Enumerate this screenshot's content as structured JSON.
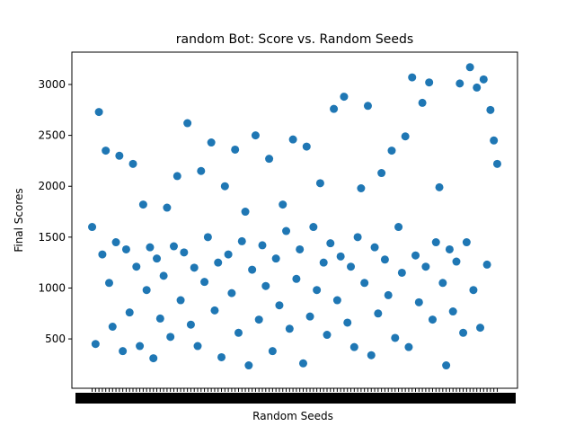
{
  "chart_data": {
    "type": "scatter",
    "title": "random Bot: Score vs. Random Seeds",
    "x_label": "Random Seeds",
    "y_label": "Final Scores",
    "color": "#1f77b4",
    "x": [
      0,
      1,
      2,
      3,
      4,
      5,
      6,
      7,
      8,
      9,
      10,
      11,
      12,
      13,
      14,
      15,
      16,
      17,
      18,
      19,
      20,
      21,
      22,
      23,
      24,
      25,
      26,
      27,
      28,
      29,
      30,
      31,
      32,
      33,
      34,
      35,
      36,
      37,
      38,
      39,
      40,
      41,
      42,
      43,
      44,
      45,
      46,
      47,
      48,
      49,
      50,
      51,
      52,
      53,
      54,
      55,
      56,
      57,
      58,
      59,
      60,
      61,
      62,
      63,
      64,
      65,
      66,
      67,
      68,
      69,
      70,
      71,
      72,
      73,
      74,
      75,
      76,
      77,
      78,
      79,
      80,
      81,
      82,
      83,
      84,
      85,
      86,
      87,
      88,
      89,
      90,
      91,
      92,
      93,
      94,
      95,
      96,
      97,
      98,
      99,
      100,
      101,
      102,
      103,
      104,
      105,
      106,
      107,
      108,
      109,
      110,
      111,
      112,
      113,
      114,
      115,
      116,
      117,
      118,
      119
    ],
    "values": [
      1600,
      450,
      2730,
      1330,
      2350,
      1050,
      620,
      1450,
      2300,
      380,
      1380,
      760,
      2220,
      1210,
      430,
      1820,
      980,
      1400,
      310,
      1290,
      700,
      1120,
      1790,
      520,
      1410,
      2100,
      880,
      1350,
      2620,
      640,
      1200,
      430,
      2150,
      1060,
      1500,
      2430,
      780,
      1250,
      320,
      2000,
      1330,
      950,
      2360,
      560,
      1460,
      1750,
      240,
      1180,
      2500,
      690,
      1420,
      1020,
      2270,
      380,
      1290,
      830,
      1820,
      1560,
      600,
      2460,
      1090,
      1380,
      260,
      2390,
      720,
      1600,
      980,
      2030,
      1250,
      540,
      1440,
      2760,
      880,
      1310,
      2880,
      660,
      1210,
      420,
      1500,
      1980,
      1050,
      2790,
      340,
      1400,
      750,
      2130,
      1280,
      930,
      2350,
      510,
      1600,
      1150,
      2490,
      420,
      3070,
      1320,
      860,
      2820,
      1210,
      3020,
      690,
      1450,
      1990,
      1050,
      240,
      1380,
      770,
      1260,
      3010,
      560,
      1450,
      3170,
      980,
      2970,
      610,
      3050,
      1230,
      2750,
      2450,
      2220
    ],
    "xlim": [
      -5.95,
      124.95
    ],
    "ylim": [
      15,
      3318
    ],
    "yticks": [
      500,
      1000,
      1500,
      2000,
      2500,
      3000
    ]
  }
}
